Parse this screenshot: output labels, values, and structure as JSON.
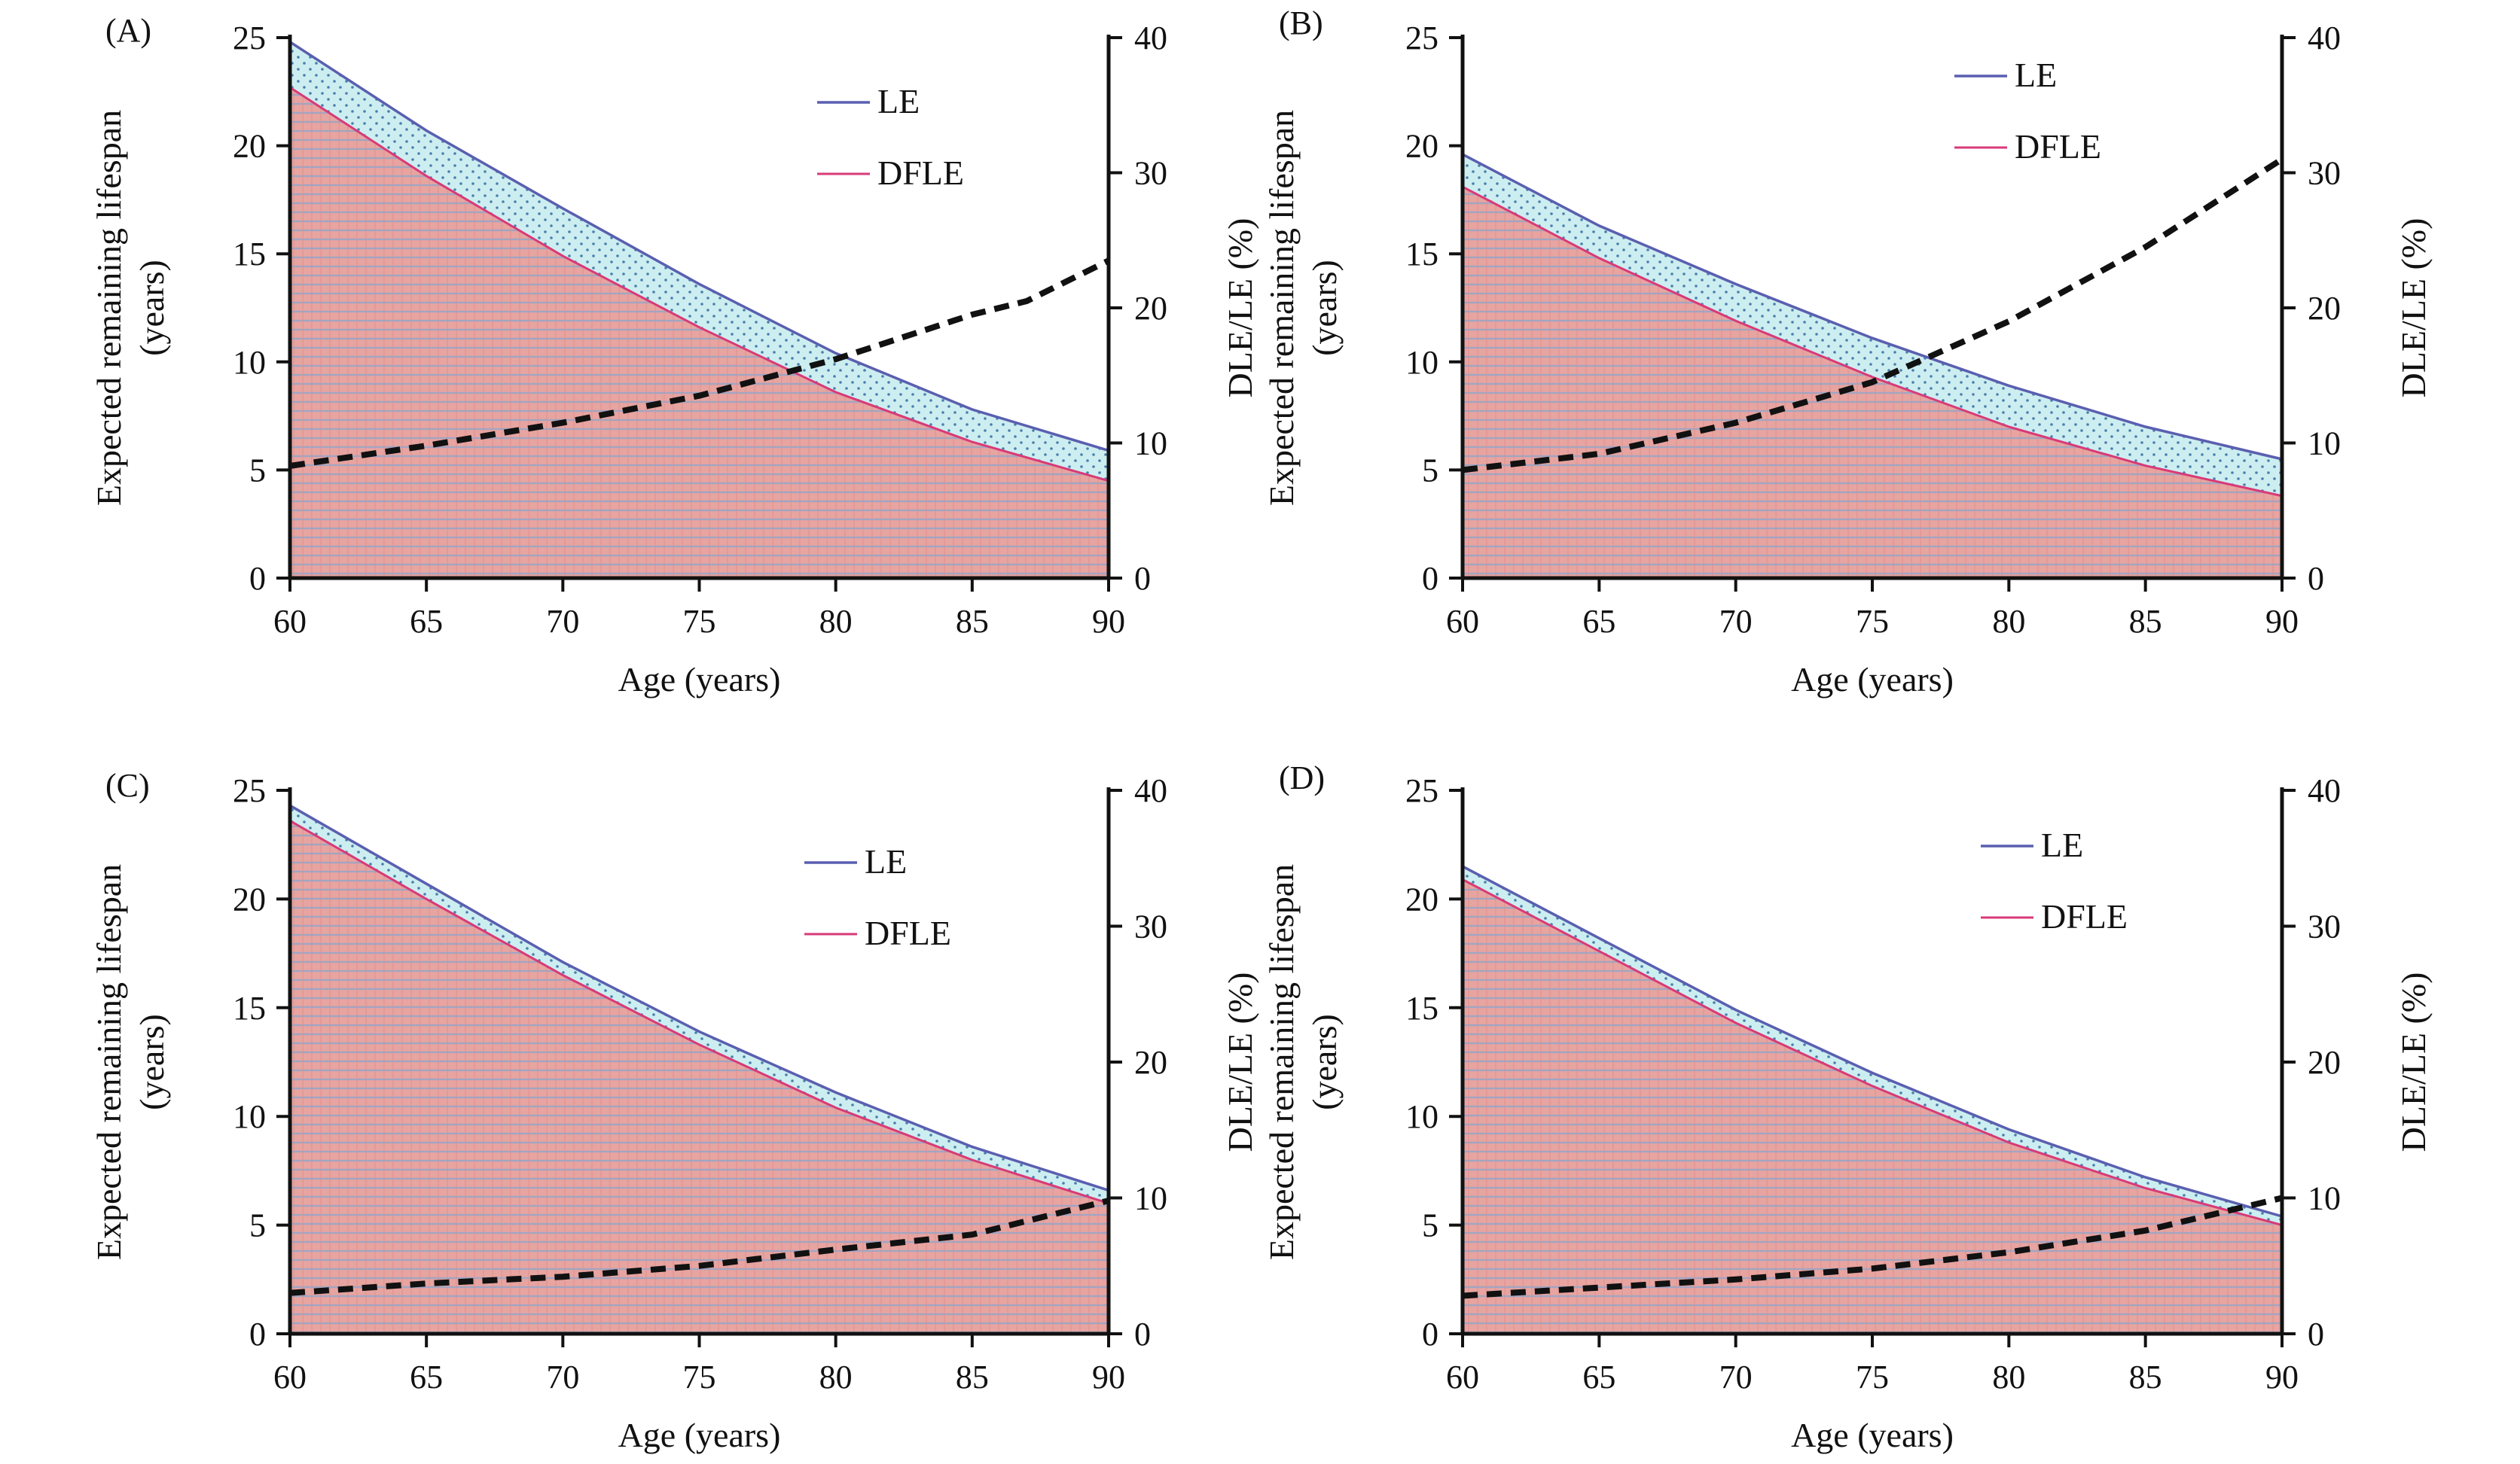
{
  "colors": {
    "le_line": "#5a5fb0",
    "dfle_line": "#d83a78",
    "le_fill": "#cdeef0",
    "le_dots": "#4a7fae",
    "dfle_fill": "#e8a4a0",
    "dfle_grid": "#9fa6c4",
    "ratio_line": "#111111",
    "axis": "#111111"
  },
  "chart_data": [
    {
      "type": "area",
      "panel": "(A)",
      "x": [
        60,
        65,
        70,
        75,
        80,
        85,
        90
      ],
      "series": [
        {
          "name": "LE",
          "values": [
            24.8,
            20.7,
            17.1,
            13.6,
            10.4,
            7.8,
            5.9
          ]
        },
        {
          "name": "DFLE",
          "values": [
            22.7,
            18.6,
            14.9,
            11.6,
            8.6,
            6.3,
            4.5
          ]
        }
      ],
      "ratio": {
        "x": [
          60,
          65,
          70,
          75,
          80,
          85,
          87,
          90
        ],
        "values": [
          8.3,
          9.8,
          11.5,
          13.5,
          16.2,
          19.5,
          20.5,
          23.5
        ]
      },
      "xlabel": "Age (years)",
      "ylabel": [
        "Expected remaining lifespan",
        "(years)"
      ],
      "y2label": "DLE/LE (%)",
      "xlim": [
        60,
        90
      ],
      "ylim": [
        0,
        25
      ],
      "y2lim": [
        0,
        40
      ],
      "xticks": [
        "60",
        "65",
        "70",
        "75",
        "80",
        "85",
        "90"
      ],
      "yticks": [
        "0",
        "5",
        "10",
        "15",
        "20",
        "25"
      ],
      "y2ticks": [
        "0",
        "10",
        "20",
        "30",
        "40"
      ],
      "legend": [
        "LE",
        "DFLE"
      ],
      "legend_position": "top-right"
    },
    {
      "type": "area",
      "panel": "(B)",
      "x": [
        60,
        65,
        70,
        75,
        80,
        85,
        90
      ],
      "series": [
        {
          "name": "LE",
          "values": [
            19.6,
            16.3,
            13.6,
            11.1,
            8.9,
            7.0,
            5.5
          ]
        },
        {
          "name": "DFLE",
          "values": [
            18.1,
            14.8,
            11.9,
            9.3,
            7.0,
            5.2,
            3.8
          ]
        }
      ],
      "ratio": {
        "x": [
          60,
          65,
          70,
          75,
          80,
          85,
          90
        ],
        "values": [
          8.0,
          9.2,
          11.5,
          14.5,
          19.0,
          24.5,
          31.0
        ]
      },
      "xlabel": "Age (years)",
      "ylabel": [
        "Expected remaining lifespan",
        "(years)"
      ],
      "y2label": "DLE/LE (%)",
      "xlim": [
        60,
        90
      ],
      "ylim": [
        0,
        25
      ],
      "y2lim": [
        0,
        40
      ],
      "xticks": [
        "60",
        "65",
        "70",
        "75",
        "80",
        "85",
        "90"
      ],
      "yticks": [
        "0",
        "5",
        "10",
        "15",
        "20",
        "25"
      ],
      "y2ticks": [
        "0",
        "10",
        "20",
        "30",
        "40"
      ],
      "legend": [
        "LE",
        "DFLE"
      ],
      "legend_position": "top-right"
    },
    {
      "type": "area",
      "panel": "(C)",
      "x": [
        60,
        65,
        70,
        75,
        80,
        85,
        90
      ],
      "series": [
        {
          "name": "LE",
          "values": [
            24.3,
            20.7,
            17.1,
            13.9,
            11.1,
            8.6,
            6.6
          ]
        },
        {
          "name": "DFLE",
          "values": [
            23.6,
            20.0,
            16.5,
            13.3,
            10.4,
            8.0,
            6.0
          ]
        }
      ],
      "ratio": {
        "x": [
          60,
          65,
          70,
          75,
          80,
          85,
          90
        ],
        "values": [
          3.0,
          3.7,
          4.2,
          5.0,
          6.2,
          7.3,
          9.8
        ]
      },
      "xlabel": "Age (years)",
      "ylabel": [
        "Expected remaining lifespan",
        "(years)"
      ],
      "y2label": "DLE/LE (%)",
      "xlim": [
        60,
        90
      ],
      "ylim": [
        0,
        25
      ],
      "y2lim": [
        0,
        40
      ],
      "xticks": [
        "60",
        "65",
        "70",
        "75",
        "80",
        "85",
        "90"
      ],
      "yticks": [
        "0",
        "5",
        "10",
        "15",
        "20",
        "25"
      ],
      "y2ticks": [
        "0",
        "10",
        "20",
        "30",
        "40"
      ],
      "legend": [
        "LE",
        "DFLE"
      ],
      "legend_position": "top-right"
    },
    {
      "type": "area",
      "panel": "(D)",
      "x": [
        60,
        65,
        70,
        75,
        80,
        85,
        90
      ],
      "series": [
        {
          "name": "LE",
          "values": [
            21.5,
            18.2,
            14.9,
            12.0,
            9.4,
            7.2,
            5.4
          ]
        },
        {
          "name": "DFLE",
          "values": [
            20.9,
            17.6,
            14.3,
            11.4,
            8.8,
            6.7,
            5.0
          ]
        }
      ],
      "ratio": {
        "x": [
          60,
          65,
          70,
          75,
          80,
          85,
          90
        ],
        "values": [
          2.8,
          3.4,
          4.0,
          4.8,
          6.0,
          7.6,
          10.0
        ]
      },
      "xlabel": "Age (years)",
      "ylabel": [
        "Expected remaining lifespan",
        "(years)"
      ],
      "y2label": "DLE/LE (%)",
      "xlim": [
        60,
        90
      ],
      "ylim": [
        0,
        25
      ],
      "y2lim": [
        0,
        40
      ],
      "xticks": [
        "60",
        "65",
        "70",
        "75",
        "80",
        "85",
        "90"
      ],
      "yticks": [
        "0",
        "5",
        "10",
        "15",
        "20",
        "25"
      ],
      "y2ticks": [
        "0",
        "10",
        "20",
        "30",
        "40"
      ],
      "legend": [
        "LE",
        "DFLE"
      ],
      "legend_position": "top-right"
    }
  ]
}
